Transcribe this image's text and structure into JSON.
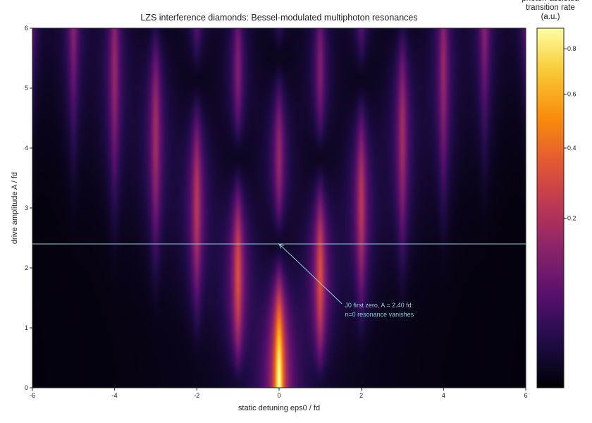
{
  "chart_data": {
    "type": "heatmap",
    "title": "LZS interference diamonds: Bessel-modulated multiphoton resonances",
    "xlabel": "static detuning eps0 / fd",
    "ylabel": "drive amplitude A / fd",
    "xlim": [
      -6,
      6
    ],
    "ylim": [
      0,
      6
    ],
    "x_ticks": [
      -6,
      -4,
      -2,
      0,
      2,
      4,
      6
    ],
    "y_ticks": [
      0,
      1,
      2,
      3,
      4,
      5,
      6
    ],
    "grid": false,
    "colormap": "inferno",
    "model": {
      "description": "rate(eps0, A) = sum_n J_n(A)^2 * Lorentzian(eps0 - n)",
      "resonance_orders": [
        -6,
        -5,
        -4,
        -3,
        -2,
        -1,
        0,
        1,
        2,
        3,
        4,
        5,
        6
      ],
      "linewidth": 0.09
    },
    "colorbar": {
      "label_lines": [
        "photon-assisted",
        "transition rate",
        "(a.u.)"
      ],
      "ticks": [
        0.2,
        0.4,
        0.6,
        0.8
      ],
      "range": [
        0,
        0.9
      ]
    },
    "reference_line": {
      "y": 2.4,
      "color": "#8fcfd6"
    },
    "annotation": {
      "lines": [
        "J0 first zero, A = 2.40 fd:",
        "n=0 resonance vanishes"
      ],
      "arrow_to": {
        "x": 0,
        "y": 2.4
      },
      "text_at": {
        "x": 1.6,
        "y": 1.2
      },
      "color": "#8fcfd6"
    }
  }
}
